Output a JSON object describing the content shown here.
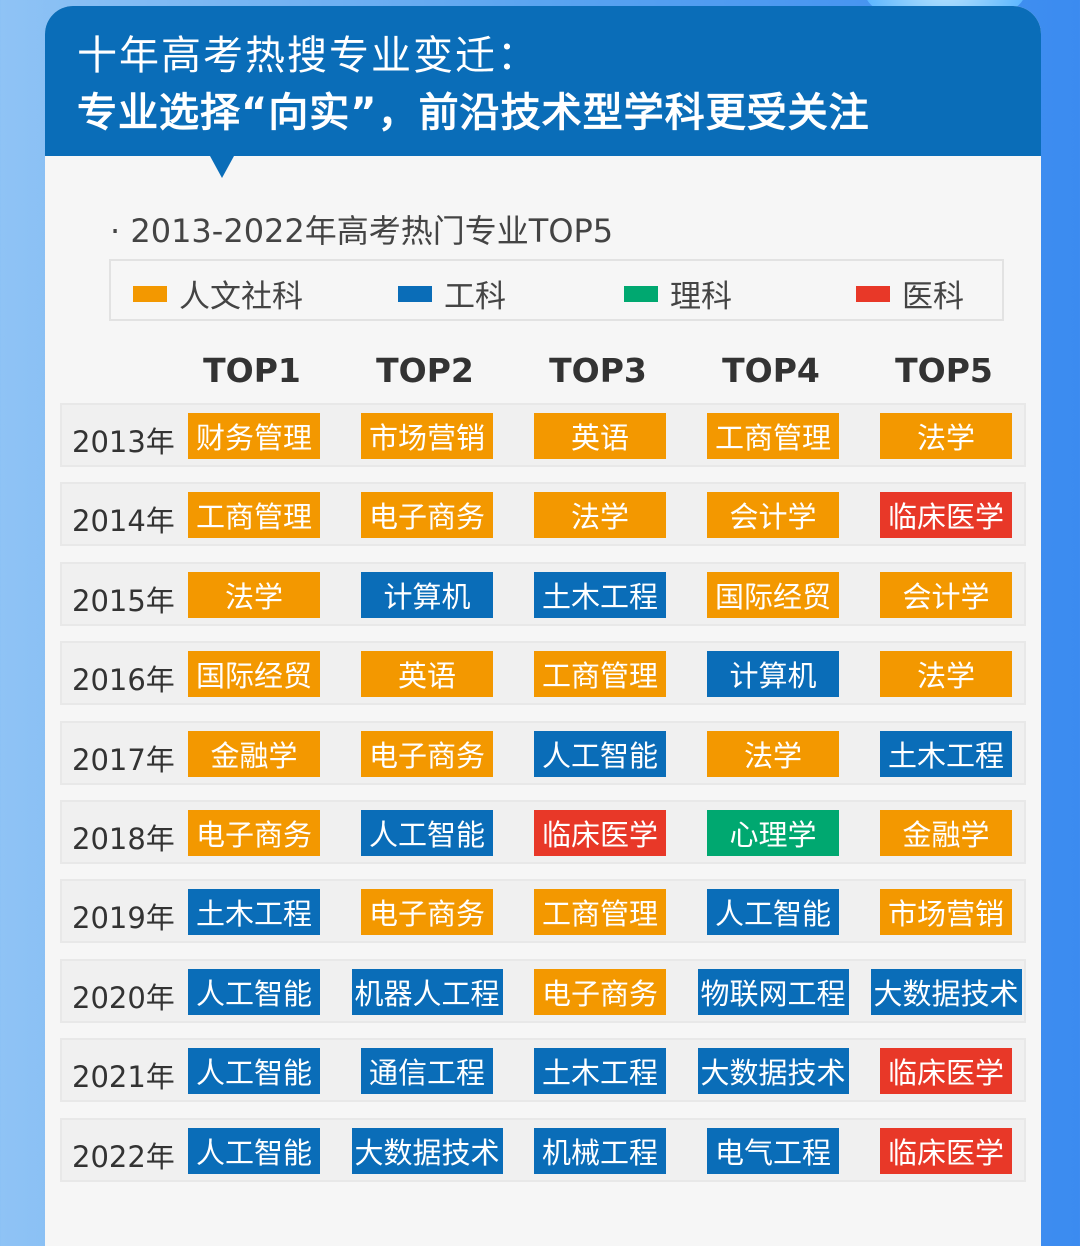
{
  "header": {
    "line1": "十年高考热搜专业变迁：",
    "line2": "专业选择“向实”，前沿技术型学科更受关注"
  },
  "subtitle": "· 2013-2022年高考热门专业TOP5",
  "colors": {
    "humanities": "#f39800",
    "engineering": "#0a6db8",
    "science": "#00a870",
    "medical": "#e83828"
  },
  "legend": [
    {
      "label": "人文社科",
      "category": "humanities"
    },
    {
      "label": "工科",
      "category": "engineering"
    },
    {
      "label": "理科",
      "category": "science"
    },
    {
      "label": "医科",
      "category": "medical"
    }
  ],
  "columns": [
    "TOP1",
    "TOP2",
    "TOP3",
    "TOP4",
    "TOP5"
  ],
  "rows": [
    {
      "year": "2013年",
      "cells": [
        {
          "t": "财务管理",
          "c": "humanities"
        },
        {
          "t": "市场营销",
          "c": "humanities"
        },
        {
          "t": "英语",
          "c": "humanities"
        },
        {
          "t": "工商管理",
          "c": "humanities"
        },
        {
          "t": "法学",
          "c": "humanities"
        }
      ]
    },
    {
      "year": "2014年",
      "cells": [
        {
          "t": "工商管理",
          "c": "humanities"
        },
        {
          "t": "电子商务",
          "c": "humanities"
        },
        {
          "t": "法学",
          "c": "humanities"
        },
        {
          "t": "会计学",
          "c": "humanities"
        },
        {
          "t": "临床医学",
          "c": "medical"
        }
      ]
    },
    {
      "year": "2015年",
      "cells": [
        {
          "t": "法学",
          "c": "humanities"
        },
        {
          "t": "计算机",
          "c": "engineering"
        },
        {
          "t": "土木工程",
          "c": "engineering"
        },
        {
          "t": "国际经贸",
          "c": "humanities"
        },
        {
          "t": "会计学",
          "c": "humanities"
        }
      ]
    },
    {
      "year": "2016年",
      "cells": [
        {
          "t": "国际经贸",
          "c": "humanities"
        },
        {
          "t": "英语",
          "c": "humanities"
        },
        {
          "t": "工商管理",
          "c": "humanities"
        },
        {
          "t": "计算机",
          "c": "engineering"
        },
        {
          "t": "法学",
          "c": "humanities"
        }
      ]
    },
    {
      "year": "2017年",
      "cells": [
        {
          "t": "金融学",
          "c": "humanities"
        },
        {
          "t": "电子商务",
          "c": "humanities"
        },
        {
          "t": "人工智能",
          "c": "engineering"
        },
        {
          "t": "法学",
          "c": "humanities"
        },
        {
          "t": "土木工程",
          "c": "engineering"
        }
      ]
    },
    {
      "year": "2018年",
      "cells": [
        {
          "t": "电子商务",
          "c": "humanities"
        },
        {
          "t": "人工智能",
          "c": "engineering"
        },
        {
          "t": "临床医学",
          "c": "medical"
        },
        {
          "t": "心理学",
          "c": "science"
        },
        {
          "t": "金融学",
          "c": "humanities"
        }
      ]
    },
    {
      "year": "2019年",
      "cells": [
        {
          "t": "土木工程",
          "c": "engineering"
        },
        {
          "t": "电子商务",
          "c": "humanities"
        },
        {
          "t": "工商管理",
          "c": "humanities"
        },
        {
          "t": "人工智能",
          "c": "engineering"
        },
        {
          "t": "市场营销",
          "c": "humanities"
        }
      ]
    },
    {
      "year": "2020年",
      "cells": [
        {
          "t": "人工智能",
          "c": "engineering"
        },
        {
          "t": "机器人工程",
          "c": "engineering"
        },
        {
          "t": "电子商务",
          "c": "humanities"
        },
        {
          "t": "物联网工程",
          "c": "engineering"
        },
        {
          "t": "大数据技术",
          "c": "engineering"
        }
      ]
    },
    {
      "year": "2021年",
      "cells": [
        {
          "t": "人工智能",
          "c": "engineering"
        },
        {
          "t": "通信工程",
          "c": "engineering"
        },
        {
          "t": "土木工程",
          "c": "engineering"
        },
        {
          "t": "大数据技术",
          "c": "engineering"
        },
        {
          "t": "临床医学",
          "c": "medical"
        }
      ]
    },
    {
      "year": "2022年",
      "cells": [
        {
          "t": "人工智能",
          "c": "engineering"
        },
        {
          "t": "大数据技术",
          "c": "engineering"
        },
        {
          "t": "机械工程",
          "c": "engineering"
        },
        {
          "t": "电气工程",
          "c": "engineering"
        },
        {
          "t": "临床医学",
          "c": "medical"
        }
      ]
    }
  ]
}
